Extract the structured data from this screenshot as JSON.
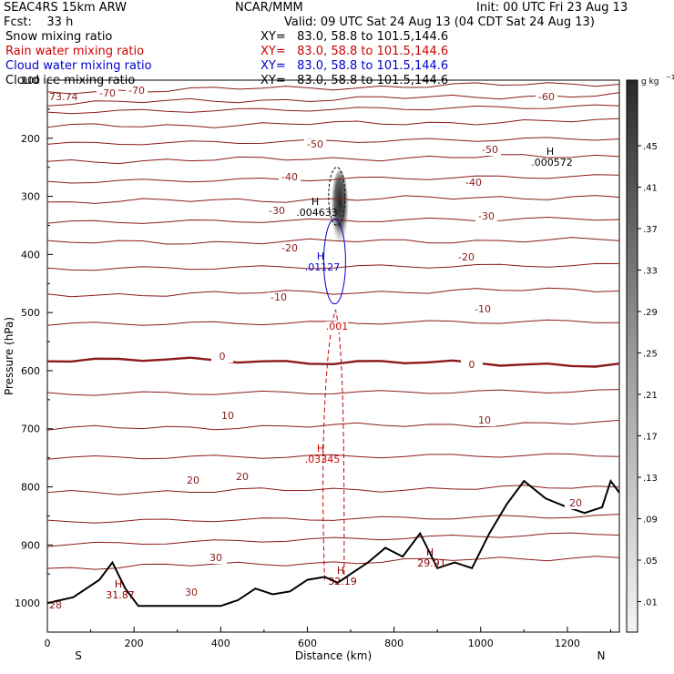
{
  "header": {
    "model": "SEAC4RS 15km ARW",
    "org": "NCAR/MMM",
    "init": "Init: 00 UTC Fri 23 Aug 13",
    "fcst": "Fcst:    33 h",
    "valid": "Valid: 09 UTC Sat 24 Aug 13 (04 CDT Sat 24 Aug 13)"
  },
  "fields": [
    {
      "name": "Snow mixing ratio",
      "xy": "XY=   83.0, 58.8 to 101.5,144.6",
      "color": "#000000"
    },
    {
      "name": "Rain water mixing ratio",
      "xy": "XY=   83.0, 58.8 to 101.5,144.6",
      "color": "#cc0000"
    },
    {
      "name": "Cloud water mixing ratio",
      "xy": "XY=   83.0, 58.8 to 101.5,144.6",
      "color": "#0000cc"
    },
    {
      "name": "Cloud ice mixing ratio",
      "xy": "XY=   83.0, 58.8 to 101.5,144.6",
      "color": "#000000"
    }
  ],
  "chart_data": {
    "type": "contour-cross-section",
    "xlabel": "Distance (km)",
    "ylabel": "Pressure (hPa)",
    "xlim": [
      0,
      1320
    ],
    "ylim_hpa": [
      1050,
      100
    ],
    "x_ticks": [
      0,
      200,
      400,
      600,
      800,
      1000,
      1200
    ],
    "y_ticks": [
      1000,
      900,
      800,
      700,
      600,
      500,
      400,
      300,
      200
    ],
    "y_top_label": "100",
    "x_end_labels": {
      "left": "S",
      "right": "N"
    },
    "colorbar": {
      "unit_label": "g kg",
      "unit_exp": "−1",
      "tick_labels": [
        ".45",
        ".41",
        ".37",
        ".33",
        ".29",
        ".25",
        ".21",
        ".17",
        ".13",
        ".09",
        ".05",
        ".01"
      ]
    },
    "temperature_contours": [
      {
        "level": "-70",
        "p_left": 120,
        "p_right": 105
      },
      {
        "level": "-60",
        "p_left": 140,
        "p_right": 125
      },
      {
        "level": "-50",
        "p_left": 180,
        "p_right": 170
      },
      {
        "level": "-40",
        "p_left": 240,
        "p_right": 230
      },
      {
        "level": "-30",
        "p_left": 310,
        "p_right": 300
      },
      {
        "level": "-20",
        "p_left": 380,
        "p_right": 375
      },
      {
        "level": "-10",
        "p_left": 470,
        "p_right": 460
      },
      {
        "level": "0",
        "p_left": 580,
        "p_right": 590
      },
      {
        "level": "10",
        "p_left": 700,
        "p_right": 690
      },
      {
        "level": "20",
        "p_left": 810,
        "p_right": 800
      },
      {
        "level": "30",
        "p_left": 940,
        "p_right": 920
      }
    ],
    "contour_labels": [
      "-70",
      "-70",
      "-60",
      "-50",
      "-50",
      "-40",
      "-40",
      "-30",
      "-30",
      "-20",
      "-20",
      "-10",
      "-10",
      "0",
      "0",
      "10",
      "10",
      "20",
      "20",
      "20",
      "30",
      "30",
      ".001"
    ],
    "maxima_labels": [
      {
        "mark": "H",
        "value": ".000572",
        "color": "#000000"
      },
      {
        "mark": "H",
        "value": ".004633",
        "color": "#000000"
      },
      {
        "mark": "H",
        "value": ".01127",
        "color": "#0000cc"
      },
      {
        "mark": "H",
        "value": ".03345",
        "color": "#cc0000"
      },
      {
        "mark": "H",
        "value": "31.87",
        "color": "#8b0000"
      },
      {
        "mark": "H",
        "value": "32.19",
        "color": "#8b0000"
      },
      {
        "mark": "H",
        "value": "29.91",
        "color": "#8b0000"
      }
    ],
    "corner_value": "73.74",
    "surface_value": "28",
    "terrain_hpa": [
      [
        0,
        1000
      ],
      [
        60,
        990
      ],
      [
        120,
        960
      ],
      [
        150,
        930
      ],
      [
        180,
        975
      ],
      [
        210,
        1005
      ],
      [
        300,
        1005
      ],
      [
        400,
        1005
      ],
      [
        440,
        995
      ],
      [
        480,
        975
      ],
      [
        520,
        985
      ],
      [
        560,
        980
      ],
      [
        600,
        960
      ],
      [
        640,
        955
      ],
      [
        670,
        965
      ],
      [
        700,
        950
      ],
      [
        740,
        930
      ],
      [
        780,
        905
      ],
      [
        820,
        920
      ],
      [
        860,
        880
      ],
      [
        900,
        940
      ],
      [
        940,
        930
      ],
      [
        980,
        940
      ],
      [
        1020,
        880
      ],
      [
        1060,
        830
      ],
      [
        1100,
        790
      ],
      [
        1150,
        820
      ],
      [
        1200,
        835
      ],
      [
        1240,
        845
      ],
      [
        1280,
        835
      ],
      [
        1300,
        790
      ],
      [
        1320,
        810
      ]
    ],
    "snow_plume_km": [
      660,
      690
    ],
    "snow_plume_hpa": [
      255,
      380
    ]
  }
}
